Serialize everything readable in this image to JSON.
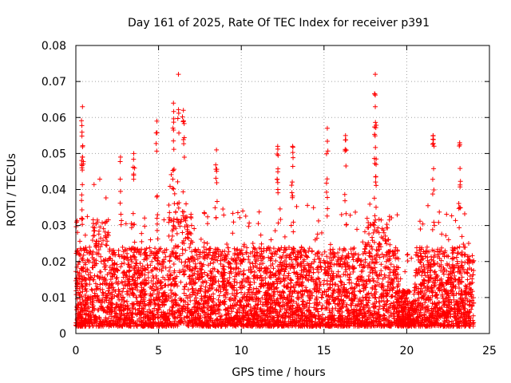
{
  "chart_data": {
    "type": "scatter",
    "title": "Day 161 of 2025, Rate Of TEC Index for receiver p391",
    "xlabel": "GPS time / hours",
    "ylabel": "ROTI / TECUs",
    "xlim": [
      0,
      25
    ],
    "ylim": [
      0,
      0.08
    ],
    "xticks": [
      "0",
      "5",
      "10",
      "15",
      "20",
      "25"
    ],
    "yticks": [
      "0",
      "0.01",
      "0.02",
      "0.03",
      "0.04",
      "0.05",
      "0.06",
      "0.07",
      "0.08"
    ],
    "grid": true,
    "marker": "+",
    "color": "#ff0000",
    "series": [
      {
        "name": "ROTI",
        "description": "dense cloud of ROTI samples from 0 to 24 h, mostly 0.002-0.03 TECU, with sparse spikes",
        "peaks": [
          {
            "x": 0.4,
            "y": 0.063
          },
          {
            "x": 0.4,
            "y": 0.049
          },
          {
            "x": 2.7,
            "y": 0.049
          },
          {
            "x": 3.5,
            "y": 0.05
          },
          {
            "x": 4.9,
            "y": 0.059
          },
          {
            "x": 5.9,
            "y": 0.064
          },
          {
            "x": 6.2,
            "y": 0.072
          },
          {
            "x": 6.5,
            "y": 0.062
          },
          {
            "x": 8.5,
            "y": 0.051
          },
          {
            "x": 12.2,
            "y": 0.052
          },
          {
            "x": 13.1,
            "y": 0.052
          },
          {
            "x": 15.2,
            "y": 0.057
          },
          {
            "x": 16.3,
            "y": 0.055
          },
          {
            "x": 18.1,
            "y": 0.072
          },
          {
            "x": 18.1,
            "y": 0.063
          },
          {
            "x": 21.6,
            "y": 0.055
          },
          {
            "x": 23.2,
            "y": 0.053
          }
        ]
      }
    ]
  }
}
